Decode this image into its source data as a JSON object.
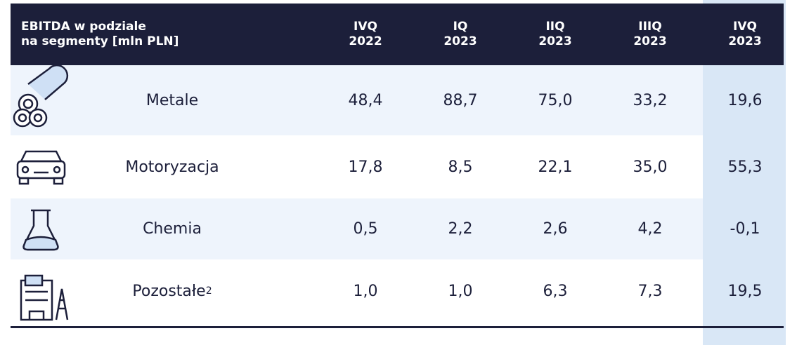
{
  "table": {
    "header": {
      "title": [
        "EBITDA w podziale",
        "na segmenty [mln PLN]"
      ],
      "columns": [
        [
          "IVQ",
          "2022"
        ],
        [
          "IQ",
          "2023"
        ],
        [
          "IIQ",
          "2023"
        ],
        [
          "IIIQ",
          "2023"
        ],
        [
          "IVQ",
          "2023"
        ]
      ]
    },
    "rows": [
      {
        "label": "Metale",
        "values": [
          "48,4",
          "88,7",
          "75,0",
          "33,2",
          "19,6"
        ]
      },
      {
        "label": "Motoryzacja",
        "values": [
          "17,8",
          "8,5",
          "22,1",
          "35,0",
          "55,3"
        ]
      },
      {
        "label": "Chemia",
        "values": [
          "0,5",
          "2,2",
          "2,6",
          "4,2",
          "-0,1"
        ]
      },
      {
        "label": "Pozostałe",
        "footnote": "2",
        "values": [
          "1,0",
          "1,0",
          "6,3",
          "7,3",
          "19,5"
        ]
      }
    ]
  }
}
